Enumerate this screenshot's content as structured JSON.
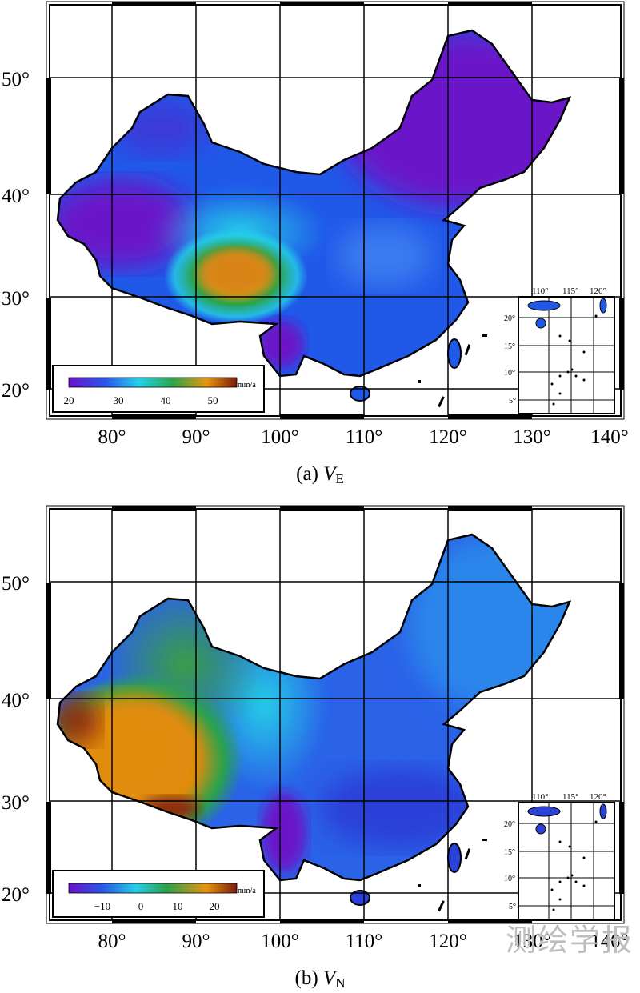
{
  "panels": [
    {
      "id": "VE",
      "caption_prefix": "(a) ",
      "caption_var": "V",
      "caption_sub": "E",
      "lat_labels": [
        "50°",
        "40°",
        "30°",
        "20°"
      ],
      "lon_labels": [
        "80°",
        "90°",
        "100°",
        "110°",
        "120°",
        "130°",
        "140°"
      ],
      "colorbar": {
        "unit": "mm/a",
        "ticks": [
          "20",
          "30",
          "40",
          "50"
        ]
      },
      "inset": {
        "lon_labels": [
          "110°",
          "115°",
          "120°"
        ],
        "lat_labels": [
          "20°",
          "15°",
          "10°",
          "5°"
        ]
      }
    },
    {
      "id": "VN",
      "caption_prefix": "(b) ",
      "caption_var": "V",
      "caption_sub": "N",
      "lat_labels": [
        "50°",
        "40°",
        "30°",
        "20°"
      ],
      "lon_labels": [
        "80°",
        "90°",
        "100°",
        "110°",
        "120°",
        "130°",
        "140°"
      ],
      "colorbar": {
        "unit": "mm/a",
        "ticks": [
          "−10",
          "0",
          "10",
          "20"
        ]
      },
      "inset": {
        "lon_labels": [
          "110°",
          "115°",
          "120°"
        ],
        "lat_labels": [
          "20°",
          "15°",
          "10°",
          "5°"
        ]
      }
    }
  ],
  "watermark": "测绘学报",
  "colors": {
    "low": "#6a12c8",
    "blue": "#1f4ee6",
    "cyan": "#25d0e8",
    "green": "#2aa34a",
    "orange": "#e89410",
    "high": "#7a1a08"
  }
}
